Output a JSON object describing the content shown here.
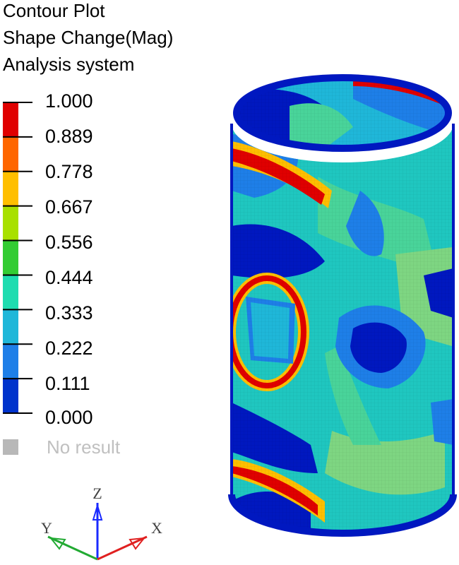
{
  "title_lines": [
    "Contour Plot",
    "Shape Change(Mag)",
    "Analysis system"
  ],
  "legend": {
    "levels": [
      "1.000",
      "0.889",
      "0.778",
      "0.667",
      "0.556",
      "0.444",
      "0.333",
      "0.222",
      "0.111",
      "0.000"
    ],
    "band_colors": [
      "#e00000",
      "#ff6600",
      "#ffbf00",
      "#a8e000",
      "#33cc33",
      "#1fdcb0",
      "#1fb7d9",
      "#1e7fe8",
      "#0033cc"
    ],
    "no_result_label": "No result",
    "no_result_color": "#b8b8b8"
  },
  "triad": {
    "z_label": "Z",
    "y_label": "Y",
    "x_label": "X"
  }
}
